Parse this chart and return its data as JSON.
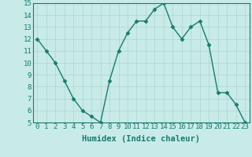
{
  "x": [
    0,
    1,
    2,
    3,
    4,
    5,
    6,
    7,
    8,
    9,
    10,
    11,
    12,
    13,
    14,
    15,
    16,
    17,
    18,
    19,
    20,
    21,
    22,
    23
  ],
  "y": [
    12,
    11,
    10,
    8.5,
    7,
    6,
    5.5,
    5,
    8.5,
    11,
    12.5,
    13.5,
    13.5,
    14.5,
    15,
    13,
    12,
    13,
    13.5,
    11.5,
    7.5,
    7.5,
    6.5,
    5
  ],
  "line_color": "#1a7a6e",
  "marker_color": "#1a7a6e",
  "bg_color": "#c8ebe8",
  "grid_color": "#b0d8d4",
  "xlabel": "Humidex (Indice chaleur)",
  "ylim": [
    5,
    15
  ],
  "xlim": [
    -0.5,
    23.5
  ],
  "yticks": [
    5,
    6,
    7,
    8,
    9,
    10,
    11,
    12,
    13,
    14,
    15
  ],
  "xticks": [
    0,
    1,
    2,
    3,
    4,
    5,
    6,
    7,
    8,
    9,
    10,
    11,
    12,
    13,
    14,
    15,
    16,
    17,
    18,
    19,
    20,
    21,
    22,
    23
  ],
  "xtick_labels": [
    "0",
    "1",
    "2",
    "3",
    "4",
    "5",
    "6",
    "7",
    "8",
    "9",
    "10",
    "11",
    "12",
    "13",
    "14",
    "15",
    "16",
    "17",
    "18",
    "19",
    "20",
    "21",
    "22",
    "23"
  ],
  "xlabel_fontsize": 7.5,
  "tick_fontsize": 6.5
}
